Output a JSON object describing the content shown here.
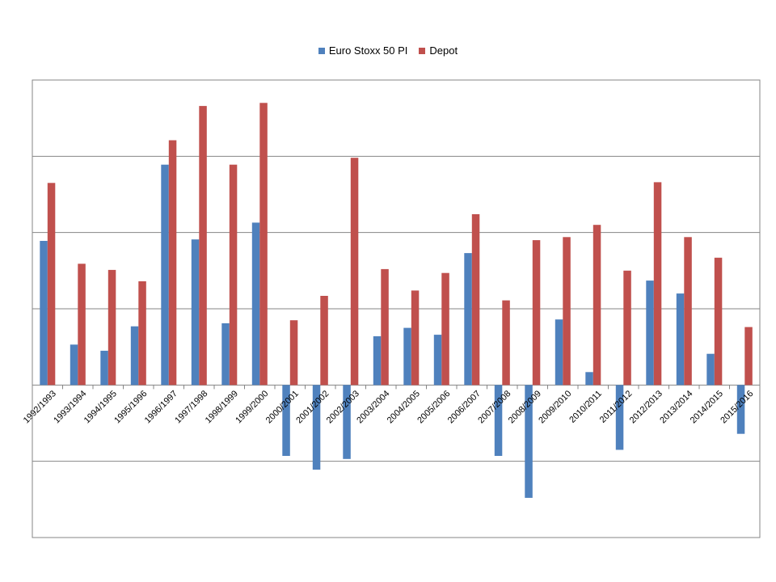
{
  "chart_data": {
    "type": "bar",
    "title": "",
    "xlabel": "",
    "ylabel": "",
    "categories": [
      "1992/1993",
      "1993/1994",
      "1994/1995",
      "1995/1996",
      "1996/1997",
      "1997/1998",
      "1998/1999",
      "1999/2000",
      "2000/2001",
      "2001/2002",
      "2002/2003",
      "2003/2004",
      "2004/2005",
      "2005/2006",
      "2006/2007",
      "2007/2008",
      "2008/2009",
      "2009/2010",
      "2010/2011",
      "2011/2012",
      "2012/2013",
      "2013/2014",
      "2014/2015",
      "2015/2016"
    ],
    "series": [
      {
        "name": "Euro Stoxx 50 PI",
        "color": "#4f81bd",
        "values": [
          18.9,
          5.3,
          4.5,
          7.7,
          28.9,
          19.1,
          8.1,
          21.3,
          -9.3,
          -11.1,
          -9.7,
          6.4,
          7.5,
          6.6,
          17.3,
          -9.3,
          -14.8,
          8.6,
          1.7,
          -8.5,
          13.7,
          12.0,
          4.1,
          -6.4
        ]
      },
      {
        "name": "Depot",
        "color": "#c0504d",
        "values": [
          26.5,
          15.9,
          15.1,
          13.6,
          32.1,
          36.6,
          28.9,
          37.0,
          8.5,
          11.7,
          29.8,
          15.2,
          12.4,
          14.7,
          22.4,
          11.1,
          19.0,
          19.4,
          21.0,
          15.0,
          26.6,
          19.4,
          16.7,
          7.6
        ]
      }
    ],
    "ylim": [
      -20,
      40
    ],
    "y_gridlines": [
      -20,
      -10,
      0,
      10,
      20,
      30,
      40
    ],
    "y_tick_labels_shown": false,
    "grid": true,
    "legend_position": "top"
  }
}
